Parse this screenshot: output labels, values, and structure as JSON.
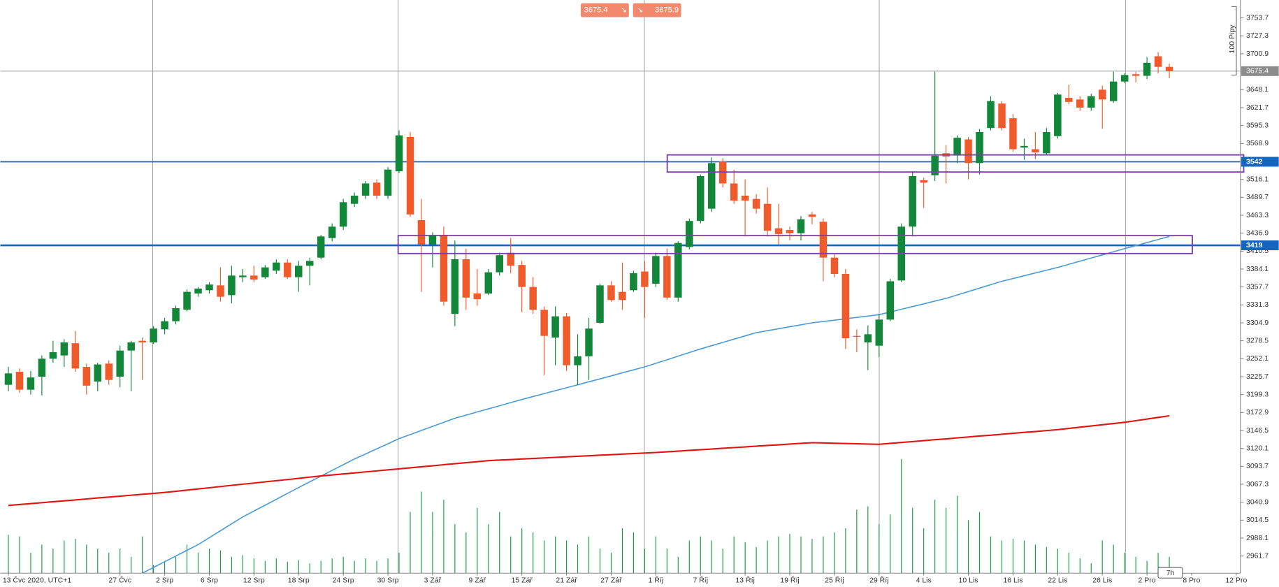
{
  "chart_data": {
    "type": "candlestick",
    "categories": [
      "13 Čvc 2020, UTC+1",
      null,
      null,
      null,
      null,
      null,
      null,
      null,
      null,
      null,
      "27 Čvc",
      null,
      null,
      null,
      "2 Srp",
      null,
      null,
      null,
      "6 Srp",
      null,
      null,
      null,
      "12 Srp",
      null,
      null,
      null,
      "18 Srp",
      null,
      null,
      null,
      "24 Srp",
      null,
      null,
      null,
      "30 Srp",
      null,
      null,
      null,
      "3 Zář",
      null,
      null,
      null,
      "9 Zář",
      null,
      null,
      null,
      "15 Zář",
      null,
      null,
      null,
      "21 Zář",
      null,
      null,
      null,
      "27 Zář",
      null,
      null,
      null,
      "1 Říj",
      null,
      null,
      null,
      "7 Říj",
      null,
      null,
      null,
      "13 Říj",
      null,
      null,
      null,
      "19 Říj",
      null,
      null,
      null,
      "25 Říj",
      null,
      null,
      null,
      "29 Říj",
      null,
      null,
      null,
      "4 Lis",
      null,
      null,
      null,
      "10 Lis",
      null,
      null,
      null,
      "16 Lis",
      null,
      null,
      null,
      "22 Lis",
      null,
      null,
      null,
      "26 Lis",
      null,
      null,
      null,
      "2 Pro",
      null,
      null,
      null,
      "8 Pro",
      null,
      null,
      null,
      "12 Pro"
    ],
    "open": [
      3213.7,
      3232.9,
      3206.5,
      3225.7,
      3252.1,
      3256.9,
      3274.9,
      3240.1,
      3218.5,
      3244.9,
      3225.7,
      3264.1,
      3278.5,
      3276.1,
      3295.3,
      3307.3,
      3324.1,
      3348.1,
      3352.9,
      3360.1,
      3345.7,
      3372.1,
      3374.5,
      3372.1,
      3381.7,
      3393.7,
      3372.1,
      3388.9,
      3400.9,
      3429.7,
      3446.5,
      3480.1,
      3492.1,
      3511.3,
      3492.1,
      3528.1,
      3578.5,
      3456.1,
      3420.1,
      3434.5,
      3318.1,
      3398.5,
      3348.1,
      3348.1,
      3379.3,
      3408.1,
      3390.1,
      3357.7,
      3324.1,
      3283.3,
      3314.5,
      3242.5,
      3255.7,
      3304.9,
      3360.1,
      3350.5,
      3352.9,
      3380.5,
      3362.5,
      3403.3,
      3342.1,
      3416.5,
      3454.9,
      3472.9,
      3542.5,
      3510.1,
      3492.1,
      3487.3,
      3480.1,
      3444.1,
      3441.7,
      3436.9,
      3464.5,
      3453.7,
      3400.9,
      3376.9,
      3285.7,
      3276.1,
      3271.3,
      3309.7,
      3367.3,
      3446.5,
      3514.9,
      3522.1,
      3554.5,
      3552.1,
      3574.9,
      3540.1,
      3591.7,
      3627.7,
      3606.1,
      3562.9,
      3560.5,
      3554.5,
      3579.7,
      3636.1,
      3633.7,
      3621.7,
      3648.1,
      3631.3,
      3660.1,
      3670.9,
      3668.5,
      3697.3,
      3681.7,
      null,
      null,
      null,
      null,
      null,
      null
    ],
    "high": [
      3240.1,
      3237.7,
      3234.1,
      3256.9,
      3278.5,
      3280.9,
      3292.9,
      3244.9,
      3246.1,
      3249.7,
      3271.3,
      3278.5,
      3283.3,
      3300.1,
      3312.1,
      3330.1,
      3354.1,
      3357.7,
      3364.9,
      3386.5,
      3388.9,
      3384.1,
      3388.9,
      3390.1,
      3398.5,
      3398.5,
      3396.1,
      3400.9,
      3434.5,
      3451.3,
      3487.3,
      3496.9,
      3513.7,
      3516.1,
      3534.1,
      3588.1,
      3585.7,
      3487.3,
      3438.1,
      3446.5,
      3426.1,
      3414.1,
      3384.1,
      3384.1,
      3408.1,
      3429.7,
      3396.1,
      3372.1,
      3328.9,
      3328.9,
      3319.3,
      3288.1,
      3312.1,
      3362.5,
      3366.1,
      3393.7,
      3381.7,
      3396.1,
      3408.1,
      3414.1,
      3424.9,
      3458.5,
      3523.3,
      3548.5,
      3547.3,
      3530.5,
      3516.1,
      3494.5,
      3504.1,
      3480.1,
      3446.5,
      3462.1,
      3468.1,
      3458.5,
      3405.7,
      3384.1,
      3295.3,
      3301.3,
      3318.1,
      3369.7,
      3451.3,
      3528.1,
      3518.5,
      3674.5,
      3566.5,
      3580.9,
      3578.5,
      3590.5,
      3638.5,
      3631.3,
      3612.1,
      3576.1,
      3585.7,
      3591.7,
      3643.3,
      3655.3,
      3638.5,
      3642.1,
      3654.1,
      3674.5,
      3672.1,
      3674.5,
      3696.1,
      3703.3,
      3686.5,
      null,
      null,
      null,
      null,
      null,
      null
    ],
    "low": [
      3204.1,
      3201.7,
      3199.3,
      3198.1,
      3246.1,
      3240.1,
      3232.9,
      3199.3,
      3204.1,
      3213.7,
      3210.1,
      3204.1,
      3220.9,
      3273.7,
      3288.1,
      3302.5,
      3321.7,
      3343.3,
      3348.1,
      3336.1,
      3333.7,
      3364.9,
      3364.9,
      3369.7,
      3376.9,
      3369.7,
      3350.5,
      3360.1,
      3398.5,
      3424.9,
      3441.7,
      3475.3,
      3487.3,
      3487.3,
      3487.3,
      3525.7,
      3460.9,
      3350.5,
      3386.5,
      3330.1,
      3300.1,
      3324.1,
      3330.1,
      3345.7,
      3374.5,
      3378.1,
      3320.5,
      3318.1,
      3228.1,
      3242.5,
      3234.1,
      3213.7,
      3220.9,
      3303.7,
      3336.1,
      3324.1,
      3350.5,
      3312.1,
      3357.7,
      3338.5,
      3336.1,
      3412.9,
      3451.3,
      3468.1,
      3504.1,
      3480.1,
      3432.1,
      3465.7,
      3432.1,
      3420.1,
      3426.1,
      3426.1,
      3450.1,
      3366.1,
      3372.1,
      3266.5,
      3261.7,
      3235.3,
      3254.5,
      3307.3,
      3364.9,
      3432.1,
      3474.1,
      3513.7,
      3510.1,
      3540.1,
      3516.1,
      3523.3,
      3588.1,
      3588.1,
      3556.9,
      3544.9,
      3546.1,
      3552.1,
      3576.1,
      3626.5,
      3616.9,
      3616.9,
      3590.5,
      3628.9,
      3657.7,
      3658.9,
      3663.7,
      3672.1,
      3664.9,
      null,
      null,
      null,
      null,
      null,
      null
    ],
    "close": [
      3230.5,
      3206.5,
      3224.5,
      3252.1,
      3261.7,
      3276.1,
      3237.7,
      3212.5,
      3243.7,
      3220.9,
      3264.1,
      3276.1,
      3276.1,
      3296.5,
      3307.3,
      3326.5,
      3350.5,
      3355.3,
      3361.3,
      3343.3,
      3374.5,
      3374.5,
      3368.5,
      3386.5,
      3393.7,
      3372.1,
      3388.9,
      3396.1,
      3432.1,
      3446.5,
      3482.5,
      3492.1,
      3510.1,
      3492.1,
      3530.5,
      3580.9,
      3464.5,
      3420.1,
      3434.5,
      3336.1,
      3398.5,
      3342.1,
      3339.7,
      3379.3,
      3404.5,
      3388.9,
      3357.7,
      3324.1,
      3285.7,
      3314.5,
      3242.5,
      3255.7,
      3296.5,
      3360.1,
      3338.5,
      3338.5,
      3378.1,
      3357.7,
      3403.3,
      3342.1,
      3422.5,
      3454.9,
      3520.9,
      3540.1,
      3510.1,
      3484.9,
      3484.9,
      3472.9,
      3440.5,
      3435.7,
      3436.9,
      3457.3,
      3460.9,
      3400.9,
      3376.9,
      3282.1,
      3284.5,
      3288.1,
      3309.7,
      3366.1,
      3446.5,
      3520.9,
      3511.3,
      3550.9,
      3549.7,
      3577.3,
      3540.1,
      3585.7,
      3631.3,
      3591.7,
      3560.5,
      3565.3,
      3555.7,
      3585.7,
      3640.9,
      3630.1,
      3621.7,
      3638.5,
      3633.7,
      3660.1,
      3669.7,
      3668.5,
      3687.7,
      3681.7,
      3675.4,
      null,
      null,
      null,
      null,
      null,
      null
    ],
    "volume": [
      47,
      45,
      25,
      35,
      30,
      40,
      42,
      35,
      30,
      25,
      30,
      20,
      45,
      10,
      15,
      20,
      35,
      25,
      30,
      28,
      20,
      22,
      18,
      15,
      18,
      14,
      16,
      12,
      15,
      18,
      20,
      15,
      18,
      15,
      18,
      25,
      75,
      100,
      75,
      90,
      60,
      50,
      80,
      60,
      75,
      45,
      55,
      50,
      40,
      45,
      40,
      35,
      45,
      30,
      25,
      55,
      50,
      30,
      45,
      30,
      20,
      40,
      45,
      40,
      30,
      45,
      38,
      32,
      40,
      45,
      48,
      45,
      42,
      45,
      50,
      55,
      78,
      82,
      60,
      72,
      140,
      80,
      55,
      90,
      80,
      95,
      65,
      75,
      45,
      40,
      42,
      40,
      35,
      32,
      30,
      25,
      18,
      12,
      40,
      35,
      25,
      20,
      15,
      25,
      20,
      null,
      null,
      null,
      null,
      null,
      null
    ],
    "up_color": "#12873a",
    "down_color": "#f15a2b",
    "volume_color": "#1b9a4a",
    "lines": [
      {
        "color": "#4b9bd6",
        "values": [
          null,
          null,
          null,
          null,
          null,
          null,
          null,
          null,
          null,
          null,
          null,
          null,
          2936.5,
          2944.9,
          2953.3,
          2961.7,
          2970.1,
          2978.5,
          2988.7,
          2998.9,
          3009.1,
          3019.3,
          3027.9,
          3036.6,
          3045.2,
          3053.9,
          3062.5,
          3070.9,
          3079.3,
          3087.7,
          3096.1,
          3104.5,
          3112.0,
          3119.5,
          3127.0,
          3134.5,
          3140.5,
          3146.5,
          3152.5,
          3158.5,
          3164.5,
          3169.1,
          3173.7,
          3178.3,
          3182.9,
          3187.5,
          3192.1,
          3196.4,
          3200.7,
          3205.1,
          3209.4,
          3213.7,
          3218.1,
          3222.5,
          3226.9,
          3231.3,
          3235.7,
          3240.1,
          3245.4,
          3250.6,
          3255.9,
          3261.2,
          3266.5,
          3271.3,
          3276.1,
          3280.9,
          3285.7,
          3290.5,
          3293.4,
          3296.3,
          3299.1,
          3302.0,
          3304.9,
          3306.9,
          3308.9,
          3310.9,
          3312.9,
          3314.9,
          3316.9,
          3320.9,
          3324.9,
          3328.9,
          3332.9,
          3336.9,
          3340.9,
          3345.9,
          3351.0,
          3356.0,
          3361.1,
          3366.1,
          3370.2,
          3374.3,
          3378.3,
          3382.4,
          3386.5,
          3391.1,
          3395.7,
          3400.3,
          3404.9,
          3409.5,
          3414.1,
          3418.6,
          3423.1,
          3427.6,
          3432.1,
          null,
          null,
          null,
          null,
          null,
          null
        ]
      },
      {
        "color": "#e3140f",
        "values": [
          3036.1,
          3037.5,
          3038.8,
          3040.2,
          3041.6,
          3043.0,
          3044.3,
          3045.7,
          3047.1,
          3048.4,
          3049.8,
          3051.2,
          3052.6,
          3053.9,
          3055.3,
          3057.0,
          3058.8,
          3060.5,
          3062.2,
          3063.9,
          3065.7,
          3067.4,
          3069.1,
          3070.9,
          3072.6,
          3074.3,
          3076.0,
          3077.8,
          3079.5,
          3081.0,
          3082.5,
          3084.0,
          3085.5,
          3087.0,
          3088.5,
          3090.0,
          3091.6,
          3093.1,
          3094.6,
          3096.1,
          3097.6,
          3099.1,
          3100.6,
          3102.1,
          3102.9,
          3103.7,
          3104.5,
          3105.3,
          3106.1,
          3106.9,
          3107.7,
          3108.5,
          3109.3,
          3110.1,
          3110.9,
          3111.7,
          3112.5,
          3113.3,
          3114.1,
          3115.1,
          3116.2,
          3117.2,
          3118.2,
          3119.2,
          3120.3,
          3121.3,
          3122.3,
          3123.4,
          3124.4,
          3125.4,
          3126.4,
          3127.5,
          3128.5,
          3128.1,
          3127.7,
          3127.3,
          3126.9,
          3126.5,
          3126.1,
          3127.5,
          3128.8,
          3130.2,
          3131.5,
          3132.9,
          3134.2,
          3135.6,
          3136.9,
          3138.3,
          3139.6,
          3141.0,
          3142.3,
          3143.7,
          3145.0,
          3146.4,
          3147.7,
          3149.5,
          3151.3,
          3153.1,
          3154.9,
          3156.7,
          3158.5,
          3160.9,
          3163.3,
          3165.7,
          3168.1,
          null,
          null,
          null,
          null,
          null,
          null
        ]
      }
    ],
    "ylim": [
      2936.5,
      3780.1
    ],
    "yticks": [
      3753.7,
      3727.3,
      3700.9,
      3648.1,
      3621.7,
      3595.3,
      3568.9,
      3516.1,
      3489.7,
      3463.3,
      3436.9,
      3410.5,
      3384.1,
      3357.7,
      3331.3,
      3304.9,
      3278.5,
      3252.1,
      3225.7,
      3199.3,
      3172.9,
      3146.5,
      3120.1,
      3093.7,
      3067.3,
      3040.9,
      3014.5,
      2988.1,
      2961.7
    ],
    "current_price": 3675.4,
    "levels": [
      3542,
      3419
    ],
    "level_color": "#1565c0",
    "sell_price": 3675.4,
    "buy_price": 3675.9,
    "pips_label": "100 Pipy",
    "period_label": "7h"
  }
}
